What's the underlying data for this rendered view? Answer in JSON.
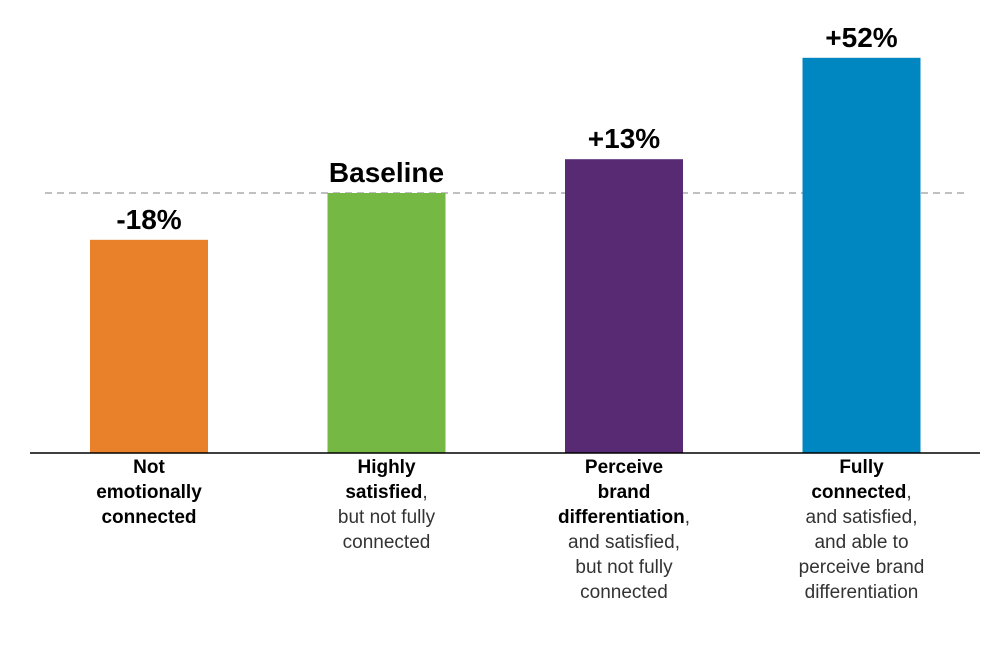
{
  "chart_data": {
    "type": "bar",
    "categories": [
      {
        "bold": [
          "Not",
          "emotionally",
          "connected"
        ],
        "bold_tail": "",
        "rest": []
      },
      {
        "bold": [
          "Highly",
          "satisfied"
        ],
        "bold_tail": ",",
        "rest": [
          "but not fully",
          "connected"
        ]
      },
      {
        "bold": [
          "Perceive",
          "brand",
          "differentiation"
        ],
        "bold_tail": ",",
        "rest": [
          "and satisfied,",
          "but not fully",
          "connected"
        ]
      },
      {
        "bold": [
          "Fully",
          "connected"
        ],
        "bold_tail": ",",
        "rest": [
          "and satisfied,",
          "and able to",
          "perceive brand",
          "differentiation"
        ]
      }
    ],
    "values": [
      -18,
      0,
      13,
      52
    ],
    "value_labels": [
      "-18%",
      "Baseline",
      "+13%",
      "+52%"
    ],
    "baseline_value": 0,
    "baseline_style": "dashed",
    "colors": [
      "#e8812a",
      "#76b844",
      "#582a74",
      "#0086c0"
    ],
    "value_axis_bottom": -100,
    "ylim": [
      -100,
      55
    ],
    "grid": false,
    "legend": "none"
  }
}
